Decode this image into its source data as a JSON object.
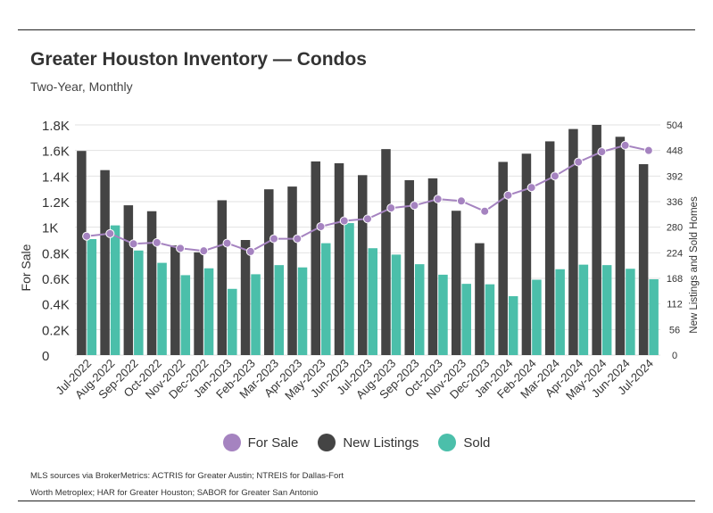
{
  "header": {
    "title": "Greater Houston Inventory — Condos",
    "subtitle": "Two-Year, Monthly"
  },
  "legend": [
    {
      "label": "For Sale",
      "color": "#a583c0"
    },
    {
      "label": "New Listings",
      "color": "#444444"
    },
    {
      "label": "Sold",
      "color": "#4bbfaa"
    }
  ],
  "source": {
    "line1": "MLS sources via BrokerMetrics: ACTRIS for Greater Austin; NTREIS for Dallas-Fort",
    "line2": "Worth Metroplex; HAR for Greater Houston; SABOR for Greater San Antonio"
  },
  "chart_data": {
    "type": "bar",
    "categories": [
      "Jul-2022",
      "Aug-2022",
      "Sep-2022",
      "Oct-2022",
      "Nov-2022",
      "Dec-2022",
      "Jan-2023",
      "Feb-2023",
      "Mar-2023",
      "Apr-2023",
      "May-2023",
      "Jun-2023",
      "Jul-2023",
      "Aug-2023",
      "Sep-2023",
      "Oct-2023",
      "Nov-2023",
      "Dec-2023",
      "Jan-2024",
      "Feb-2024",
      "Mar-2024",
      "Apr-2024",
      "May-2024",
      "Jun-2024",
      "Jul-2024"
    ],
    "ylabel": "For Sale",
    "y2label": "New Listings and Sold Homes",
    "ylim": [
      0,
      1800
    ],
    "y2lim": [
      0,
      504
    ],
    "yticks": [
      "0",
      "0.2K",
      "0.4K",
      "0.6K",
      "0.8K",
      "1K",
      "1.2K",
      "1.4K",
      "1.6K",
      "1.8K"
    ],
    "y2ticks": [
      "0",
      "56",
      "112",
      "168",
      "224",
      "280",
      "336",
      "392",
      "448",
      "504"
    ],
    "grid": true,
    "legend_position": "bottom",
    "series": [
      {
        "name": "For Sale",
        "type": "line",
        "axis": "left",
        "color": "#a583c0",
        "values": [
          930,
          950,
          870,
          880,
          835,
          815,
          875,
          810,
          910,
          910,
          1005,
          1050,
          1065,
          1150,
          1170,
          1220,
          1205,
          1125,
          1250,
          1310,
          1400,
          1510,
          1590,
          1640,
          1600
        ]
      },
      {
        "name": "New Listings",
        "type": "bar",
        "axis": "right",
        "color": "#444444",
        "values": [
          447,
          405,
          328,
          315,
          240,
          225,
          339,
          252,
          363,
          369,
          424,
          420,
          394,
          451,
          383,
          387,
          316,
          245,
          423,
          441,
          468,
          495,
          504,
          478,
          418
        ]
      },
      {
        "name": "Sold",
        "type": "bar",
        "axis": "right",
        "color": "#4bbfaa",
        "values": [
          254,
          284,
          229,
          202,
          175,
          190,
          145,
          177,
          197,
          192,
          245,
          289,
          234,
          220,
          199,
          176,
          156,
          155,
          129,
          165,
          188,
          198,
          197,
          189,
          166
        ]
      }
    ]
  }
}
